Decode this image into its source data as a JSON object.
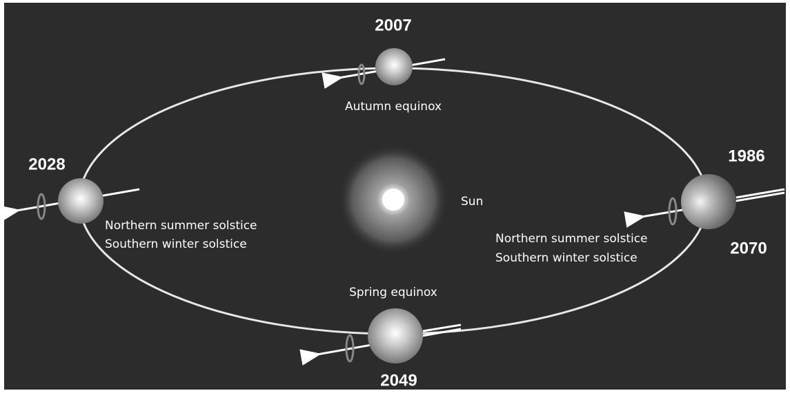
{
  "sun": {
    "label": "Sun"
  },
  "top": {
    "year": "2007",
    "label": "Autumn equinox"
  },
  "left": {
    "year": "2028",
    "lines": [
      "Northern summer solstice",
      "Southern winter solstice"
    ]
  },
  "right": {
    "years": [
      "1986",
      "2070"
    ],
    "lines": [
      "Northern summer solstice",
      "Southern winter solstice"
    ]
  },
  "bottom": {
    "year": "2049",
    "label": "Spring equinox"
  }
}
